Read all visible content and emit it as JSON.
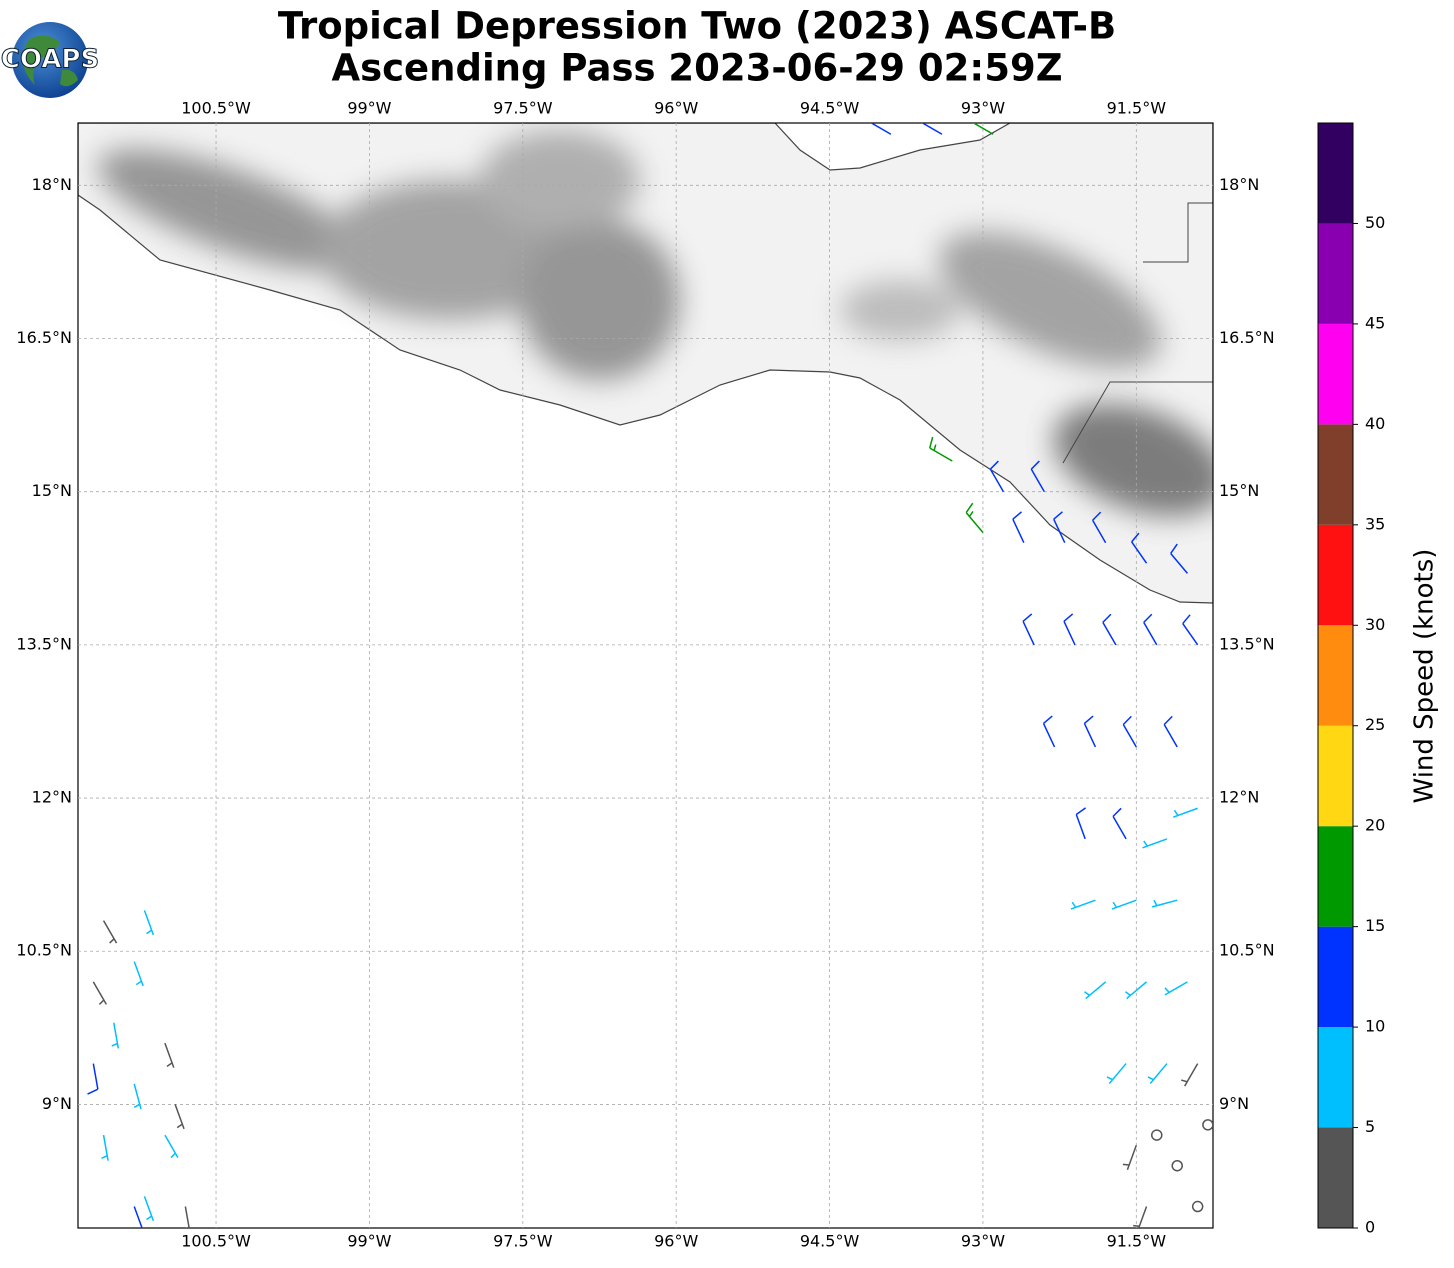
{
  "header": {
    "title": [
      "Tropical Depression Two (2023) ASCAT-B",
      "Ascending Pass 2023-06-29 02:59Z"
    ],
    "logo": "COAPS"
  },
  "map": {
    "xlim": [
      -101.85,
      -90.75
    ],
    "ylim": [
      7.79,
      18.61
    ],
    "grid": true,
    "xticks": [
      {
        "value": -100.5,
        "label": "100.5°W"
      },
      {
        "value": -99,
        "label": "99°W"
      },
      {
        "value": -97.5,
        "label": "97.5°W"
      },
      {
        "value": -96,
        "label": "96°W"
      },
      {
        "value": -94.5,
        "label": "94.5°W"
      },
      {
        "value": -93,
        "label": "93°W"
      },
      {
        "value": -91.5,
        "label": "91.5°W"
      }
    ],
    "yticks": [
      {
        "value": 9,
        "label": "9°N"
      },
      {
        "value": 10.5,
        "label": "10.5°N"
      },
      {
        "value": 12,
        "label": "12°N"
      },
      {
        "value": 13.5,
        "label": "13.5°N"
      },
      {
        "value": 15,
        "label": "15°N"
      },
      {
        "value": 16.5,
        "label": "16.5°N"
      },
      {
        "value": 18,
        "label": "18°N"
      }
    ],
    "barbs": [
      [
        -92.8,
        15.0,
        12,
        330
      ],
      [
        -92.4,
        15.0,
        12,
        330
      ],
      [
        -92.6,
        14.5,
        12,
        335
      ],
      [
        -92.2,
        14.5,
        12,
        335
      ],
      [
        -91.8,
        14.5,
        12,
        330
      ],
      [
        -91.4,
        14.3,
        12,
        325
      ],
      [
        -91.0,
        14.2,
        12,
        320
      ],
      [
        -92.5,
        13.5,
        12,
        335
      ],
      [
        -92.1,
        13.5,
        12,
        335
      ],
      [
        -91.7,
        13.5,
        12,
        330
      ],
      [
        -91.3,
        13.5,
        12,
        330
      ],
      [
        -90.9,
        13.5,
        12,
        325
      ],
      [
        -92.3,
        12.5,
        12,
        335
      ],
      [
        -91.9,
        12.5,
        12,
        335
      ],
      [
        -91.5,
        12.5,
        12,
        330
      ],
      [
        -91.1,
        12.5,
        12,
        330
      ],
      [
        -92.0,
        11.6,
        12,
        340
      ],
      [
        -91.6,
        11.6,
        12,
        330
      ],
      [
        -91.2,
        11.6,
        7,
        250
      ],
      [
        -90.9,
        11.9,
        7,
        250
      ],
      [
        -91.9,
        11.0,
        7,
        250
      ],
      [
        -91.5,
        11.0,
        7,
        250
      ],
      [
        -91.1,
        11.0,
        7,
        255
      ],
      [
        -91.8,
        10.2,
        7,
        230
      ],
      [
        -91.4,
        10.2,
        7,
        230
      ],
      [
        -91.0,
        10.2,
        7,
        240
      ],
      [
        -91.6,
        9.4,
        7,
        220
      ],
      [
        -91.2,
        9.4,
        7,
        220
      ],
      [
        -91.5,
        8.6,
        3,
        200
      ],
      [
        -90.9,
        9.4,
        3,
        210
      ],
      [
        -91.4,
        8.0,
        3,
        200
      ],
      [
        -91.1,
        8.4,
        0,
        0
      ],
      [
        -90.9,
        8.0,
        0,
        0
      ],
      [
        -90.8,
        8.8,
        0,
        0
      ],
      [
        -91.3,
        8.7,
        0,
        0
      ],
      [
        -93.3,
        15.3,
        17,
        300
      ],
      [
        -93.0,
        14.6,
        17,
        320
      ],
      [
        -93.9,
        18.5,
        12,
        300
      ],
      [
        -93.4,
        18.5,
        12,
        300
      ],
      [
        -92.9,
        18.5,
        17,
        300
      ],
      [
        -101.2,
        10.9,
        7,
        160
      ],
      [
        -101.3,
        10.4,
        7,
        160
      ],
      [
        -101.5,
        9.8,
        7,
        170
      ],
      [
        -101.3,
        9.2,
        7,
        165
      ],
      [
        -101.6,
        8.7,
        7,
        170
      ],
      [
        -101.2,
        8.1,
        7,
        160
      ],
      [
        -101.0,
        8.7,
        7,
        150
      ],
      [
        -101.6,
        10.8,
        3,
        150
      ],
      [
        -101.7,
        10.2,
        3,
        150
      ],
      [
        -101.0,
        9.6,
        3,
        160
      ],
      [
        -100.9,
        9.0,
        3,
        160
      ],
      [
        -100.8,
        8.0,
        3,
        170
      ],
      [
        -101.7,
        9.4,
        12,
        170
      ],
      [
        -101.3,
        8.0,
        12,
        160
      ]
    ]
  },
  "colorbar": {
    "label": "Wind Speed (knots)",
    "lim": [
      0,
      55
    ],
    "ticks": [
      0,
      5,
      10,
      15,
      20,
      25,
      30,
      35,
      40,
      45,
      50
    ],
    "colors": [
      "#555555",
      "#00bfff",
      "#0033ff",
      "#009900",
      "#ffd712",
      "#ff8c0f",
      "#ff1111",
      "#7f3f2a",
      "#ff00f0",
      "#8800b0",
      "#320060"
    ]
  }
}
